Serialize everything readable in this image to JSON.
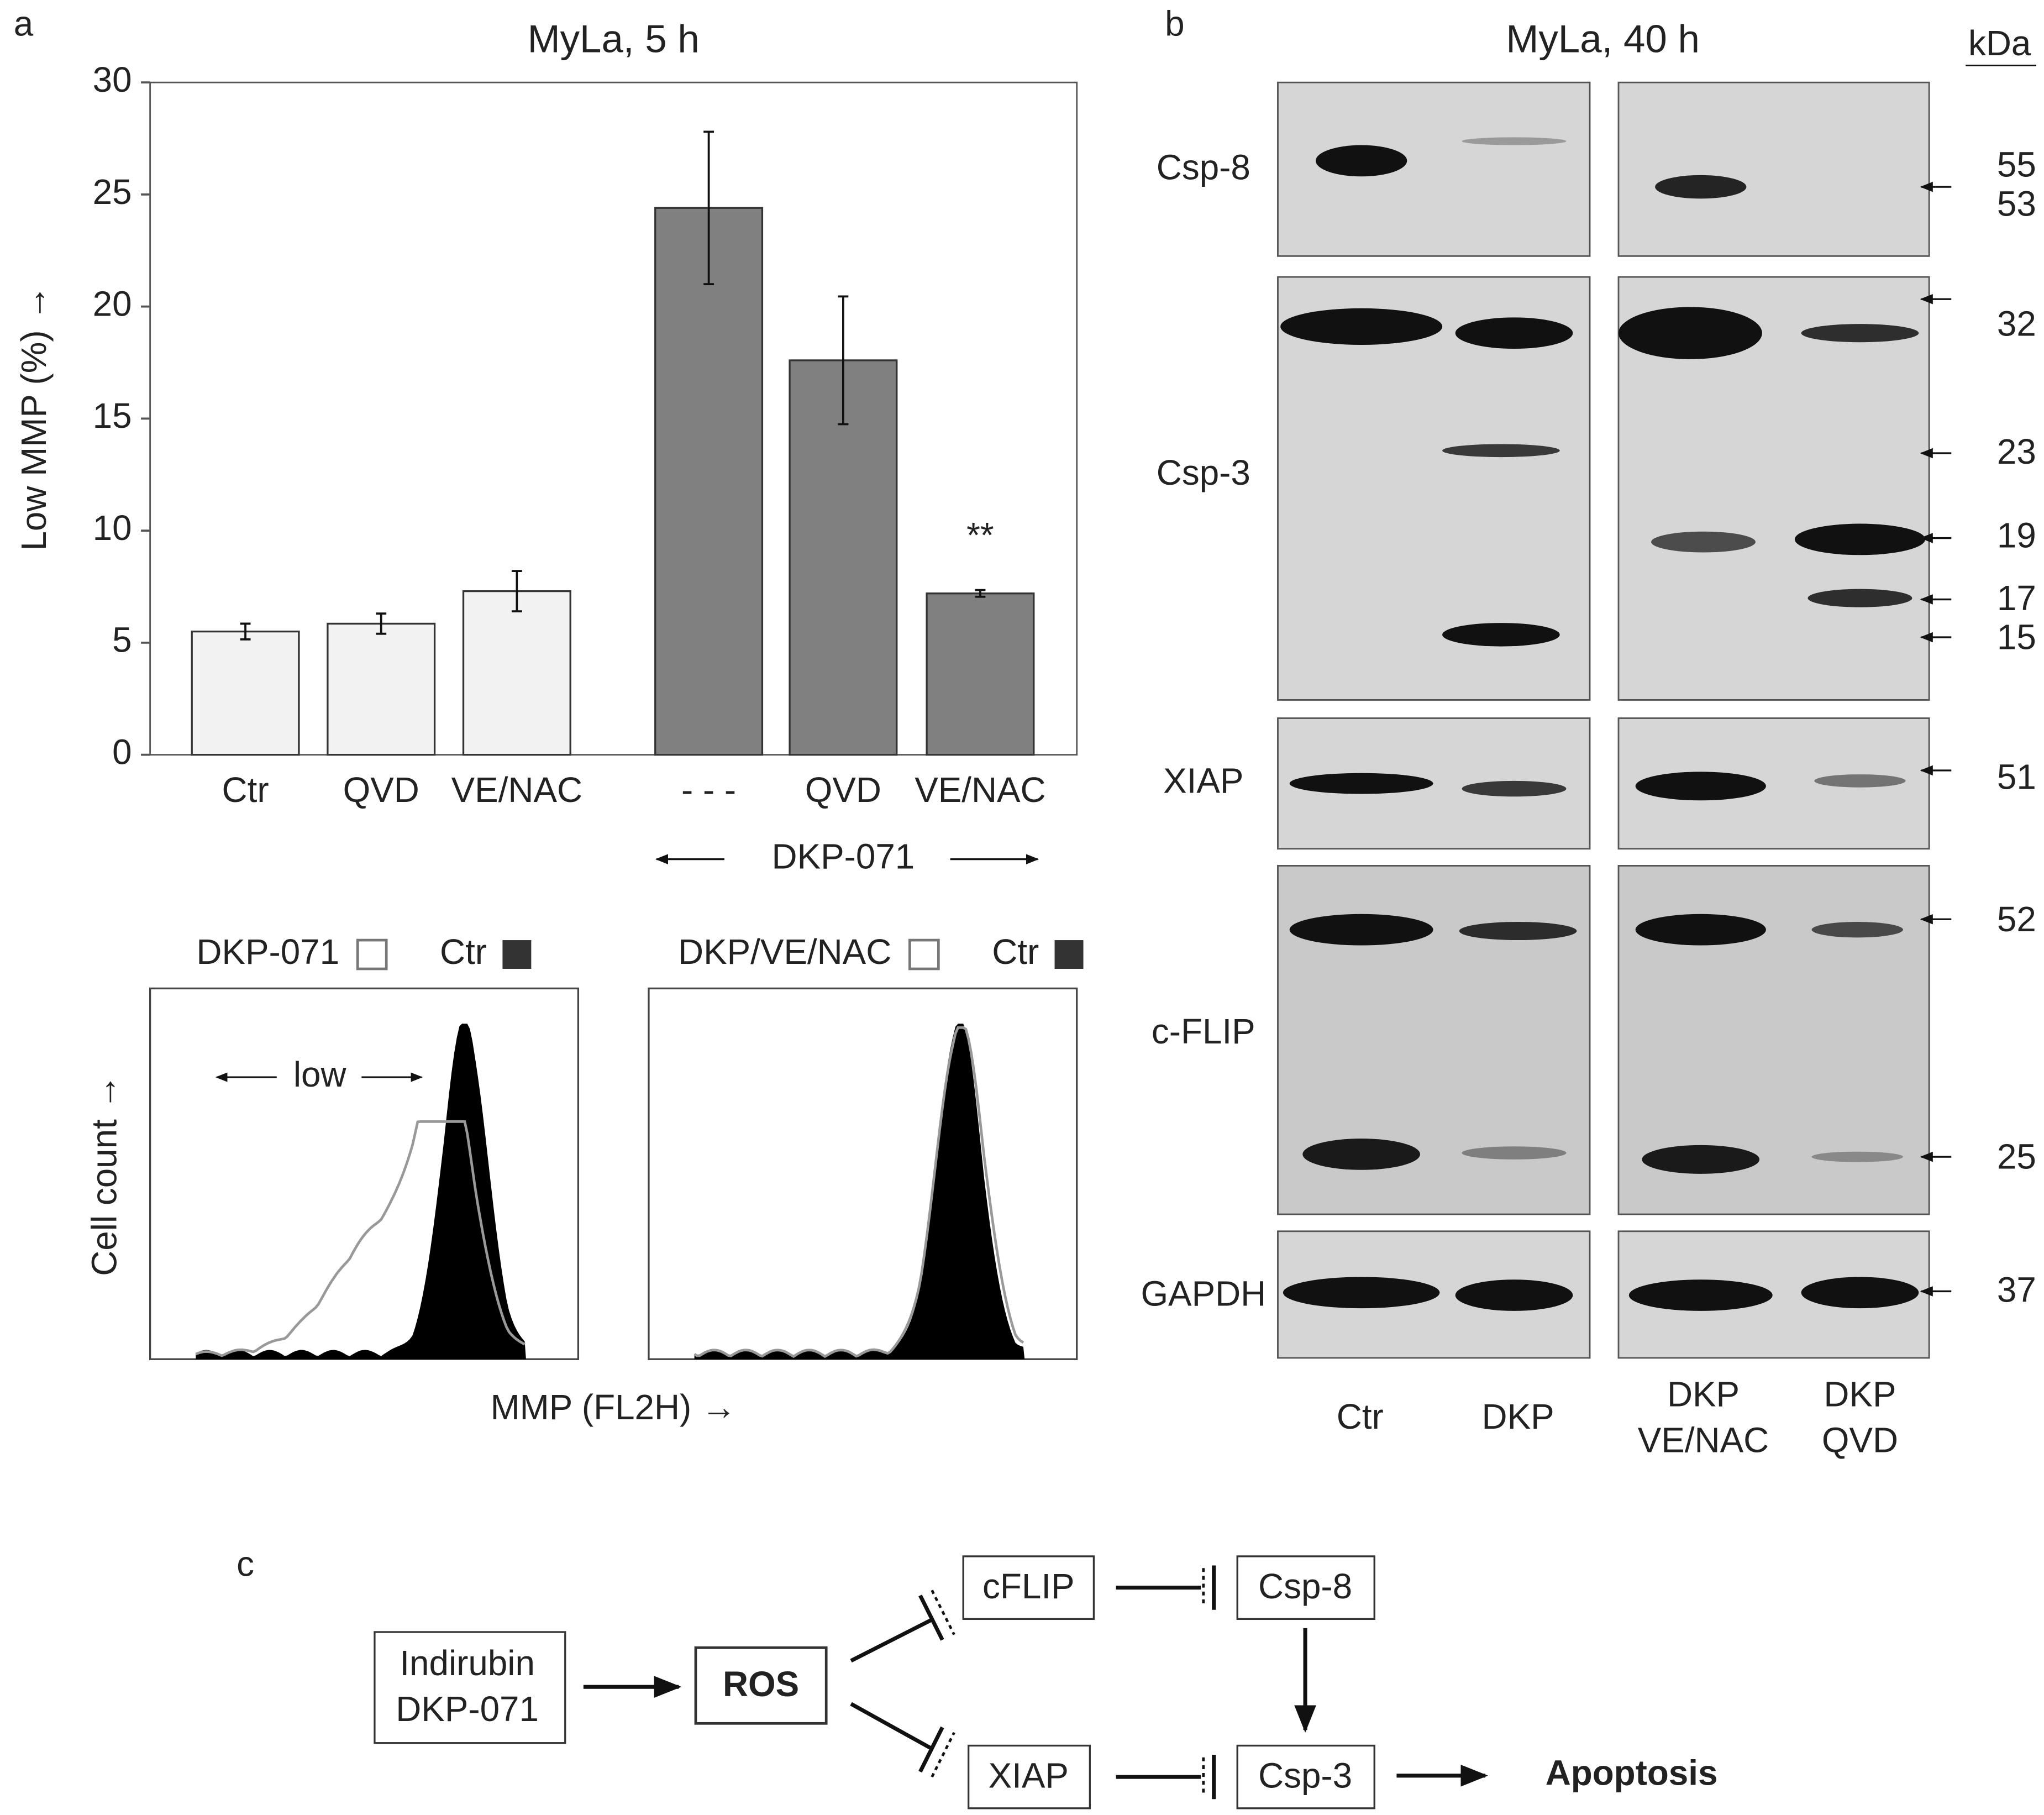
{
  "panel_labels": [
    "a",
    "b",
    "c"
  ],
  "chart_data": {
    "type": "bar",
    "title": "MyLa, 5 h",
    "y_label": "Low MMP (%) →",
    "categories": [
      "Ctr",
      "QVD",
      "VE/NAC",
      "- - -",
      "QVD",
      "VE/NAC"
    ],
    "values": [
      5.5,
      5.85,
      7.3,
      24.4,
      17.6,
      7.2
    ],
    "errors": [
      0.35,
      0.45,
      0.9,
      3.4,
      2.85,
      0.15
    ],
    "colors": [
      "#f2f2f2",
      "#f2f2f2",
      "#f2f2f2",
      "#808080",
      "#808080",
      "#808080"
    ],
    "significance": [
      null,
      null,
      null,
      null,
      null,
      "**"
    ],
    "group_label": "DKP-071",
    "ylim": [
      0,
      30
    ],
    "yticks": [
      0,
      5,
      10,
      15,
      20,
      25,
      30
    ],
    "grid": false
  },
  "histograms": {
    "y_label": "Cell count →",
    "x_label": "MMP (FL2H) →",
    "panels": [
      {
        "legend": [
          "DKP-071",
          "Ctr"
        ],
        "annotation": "low"
      },
      {
        "legend": [
          "DKP/VE/NAC",
          "Ctr"
        ]
      }
    ]
  },
  "western_blot": {
    "title": "MyLa, 40 h",
    "unit": "kDa",
    "proteins": [
      "Csp-8",
      "Csp-3",
      "XIAP",
      "c-FLIP",
      "GAPDH"
    ],
    "markers": [
      55,
      53,
      32,
      23,
      19,
      17,
      15,
      51,
      52,
      25,
      37
    ],
    "lanes": [
      [
        "Ctr"
      ],
      [
        "DKP"
      ],
      [
        "DKP",
        "VE/NAC"
      ],
      [
        "DKP",
        "QVD"
      ]
    ]
  },
  "diagram": {
    "nodes": [
      [
        "Indirubin",
        "DKP-071"
      ],
      [
        "ROS"
      ],
      [
        "cFLIP"
      ],
      [
        "Csp-8"
      ],
      [
        "XIAP"
      ],
      [
        "Csp-3"
      ],
      [
        "Apoptosis"
      ]
    ]
  }
}
